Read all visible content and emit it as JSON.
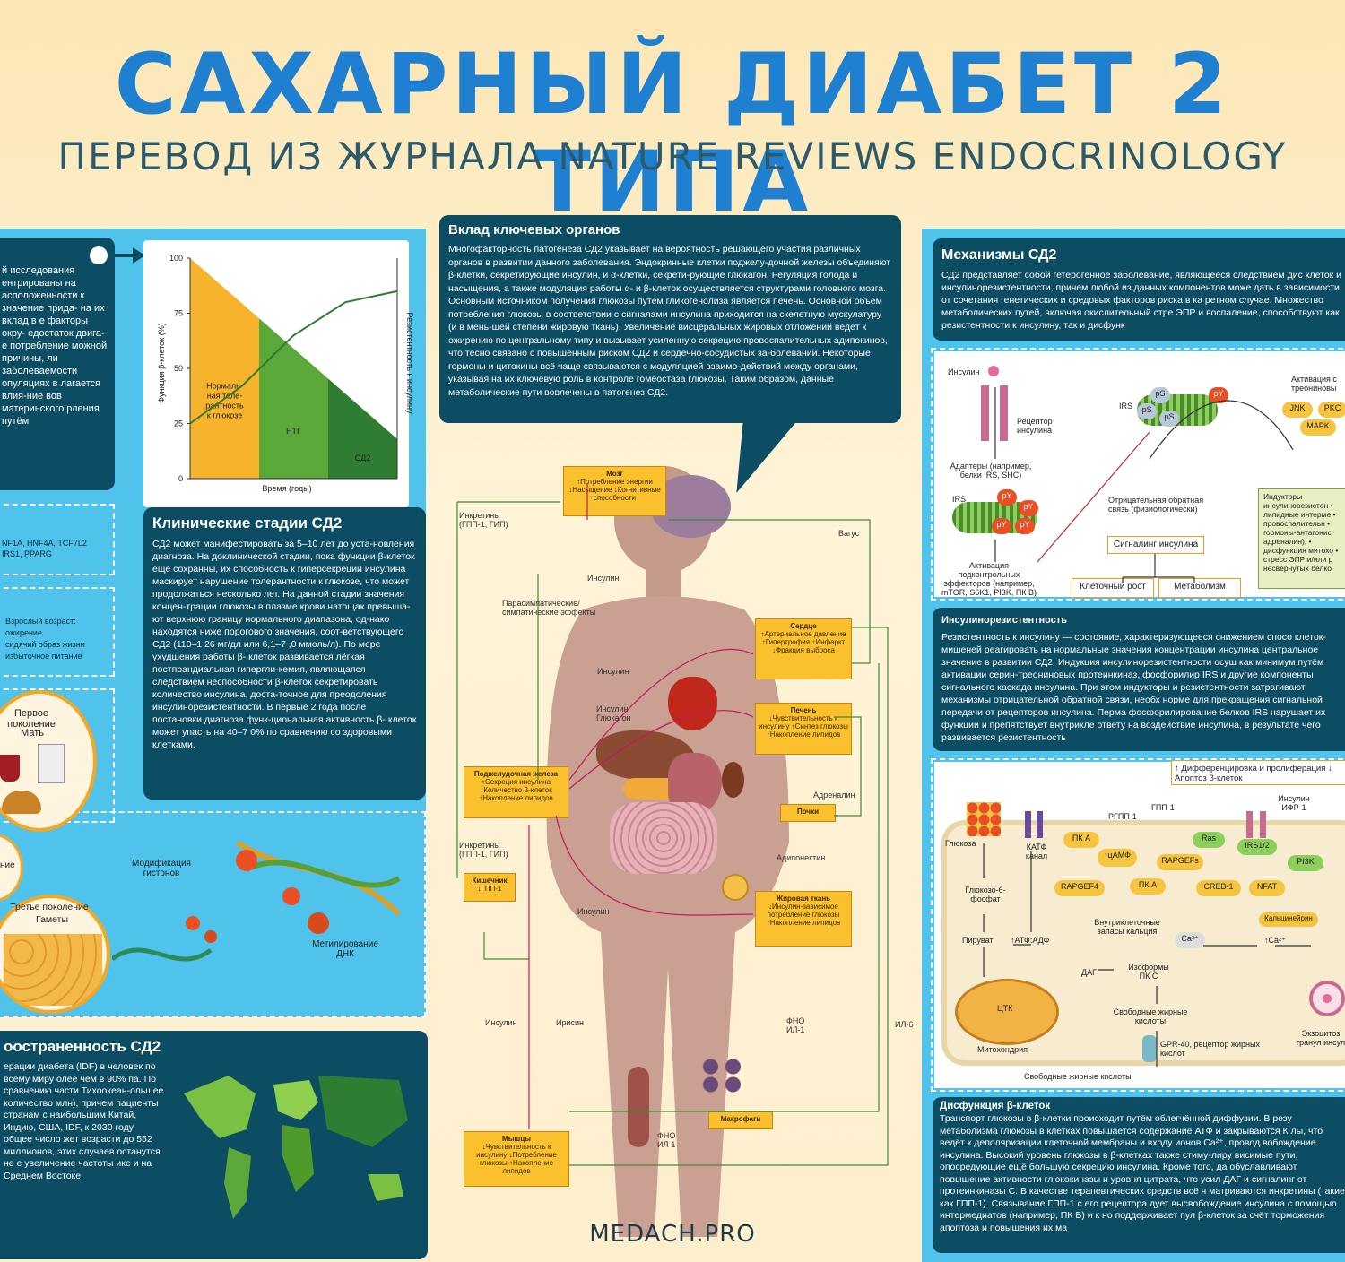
{
  "header": {
    "title": "САХАРНЫЙ ДИАБЕТ 2 ТИПА",
    "subtitle": "ПЕРЕВОД ИЗ ЖУРНАЛА NATURE REVIEWS ENDOCRINOLOGY"
  },
  "left_intro": {
    "text": "й исследования ентрированы на асположенности к значение прида- на их вклад в е факторы окру- едостаток двига- е потребление можной причины, ли заболеваемости опуляциях в лагается влия-ние вов материнского рления путём"
  },
  "genes": {
    "text": "NF1A, HNF4A, TCF7L2 IRS1, PPARG"
  },
  "risk": {
    "heading": "Взрослый возраст:",
    "items": [
      "ожирение",
      "сидячий образ жизни",
      "избыточное питание"
    ]
  },
  "generations": {
    "first": "Первое поколение",
    "mother": "Мать",
    "second": "ние",
    "third": "Третье поколение",
    "gametes": "Гаметы",
    "histone": "Модификация гистонов",
    "methylation": "Метилирование ДНК"
  },
  "chart_data": {
    "type": "area",
    "title": "",
    "xlabel": "Время (годы)",
    "ylabel": "Функция β-клеток (%)",
    "y2label": "Резистентность к инсулину",
    "ylim": [
      0,
      100
    ],
    "yticks": [
      0,
      25,
      50,
      75,
      100
    ],
    "stages": [
      {
        "name": "Нормаль-ная толе-рантность к глюкозе",
        "color": "#f7b32b"
      },
      {
        "name": "НТГ",
        "color": "#5aa83a"
      },
      {
        "name": "СД2",
        "color": "#2e7d32"
      }
    ],
    "series": [
      {
        "name": "Функция β-клеток",
        "x": [
          0,
          1
        ],
        "values": [
          100,
          18
        ]
      },
      {
        "name": "Резистентность к инсулину",
        "x": [
          0,
          0.25,
          0.5,
          0.75,
          1
        ],
        "values": [
          25,
          42,
          65,
          80,
          85
        ]
      }
    ]
  },
  "clinical": {
    "title": "Клинические стадии СД2",
    "text": "СД2 может манифестировать за 5–10 лет до уста-новления диагноза. На доклинической стадии, пока функции β-клеток еще сохранны, их способность к гиперсекреции инсулина маскирует нарушение толерантности к глюкозе, что может продолжаться несколько лет. На данной стадии значения концен-трации глюкозы в плазме крови натощак превыша-ют верхнюю границу нормального диапазона, од-нако находятся ниже порогового значения, соот-ветствующего СД2 (110–1 26 мг/дл или 6,1–7 ,0 ммоль/л). По мере ухудшения работы β- клеток развивается лёгкая постпрандиальная гипергли-кемия, являющаяся следствием неспособности β-клеток секретировать количество инсулина, доста-точное для преодоления инсулинорезистентности. В первые 2 года после постановки диагноза функ-циональная активность β- клеток может упасть на 40–7 0% по сравнению со здоровыми клетками."
  },
  "prevalence": {
    "title": "оостраненность СД2",
    "text": "ерации диабета (IDF) в человек по всему миру олее чем в 90% па. По сравнению части Тихоокеан-ольшее количество млн), причем пациенты странам с наибольшим Китай, Индию, США, IDF, к 2030 году общее число жет возрасти до 552 миллионов, этих случаев останутся не е увеличение частоты ике и на Среднем Востоке."
  },
  "organs": {
    "title": "Вклад ключевых органов",
    "text": "Многофакторность патогенеза СД2 указывает на вероятность решающего участия различных органов в развитии данного заболевания. Эндокринные клетки поджелу-дочной железы объединяют β-клетки, секретирующие инсулин, и α-клетки, секрети-рующие глюкагон. Регуляция голода и насыщения, а также модуляция работы α- и β-клеток осуществляется структурами головного мозга. Основным источником получения глюкозы путём гликогенолиза является печень. Основной объём потребления глюкозы в соответствии с сигналами инсулина приходится на скелетную мускулатуру (и в мень-шей степени жировую ткань). Увеличение висцеральных жировых отложений ведёт к ожирению по центральному типу и вызывает усиленную секрецию провоспалительных адипокинов, что тесно связано с повышенным риском СД2 и сердечно-сосудистых за-болеваний. Некоторые гормоны и цитокины всё чаще связываются с модуляцией взаимо-действий между органами, указывая на их ключевую роль в контроле гомеостаза глюкозы. Таким образом, данные метаболические пути вовлечены в патогенез СД2."
  },
  "body": {
    "brain": {
      "title": "Мозг",
      "text": "↑Потребление энергии ↓Насыщение ↓Когнитивные способности"
    },
    "heart": {
      "title": "Сердце",
      "text": "↑Артериальное давление ↑Гипертрофия ↑Инфаркт ↓Фракция выброса"
    },
    "liver": {
      "title": "Печень",
      "text": "↓Чувствительность к инсулину ↑Синтез глюкозы ↑Накопление липидов"
    },
    "pancreas": {
      "title": "Поджелудочная железа",
      "text": "↑Секреция инсулина ↓Количество β-клеток ↑Накопление липидов"
    },
    "kidney": {
      "title": "Почки",
      "text": ""
    },
    "gut": {
      "title": "Кишечник",
      "text": "↓ГПП-1"
    },
    "fat": {
      "title": "Жировая ткань",
      "text": "↓Инсулин-зависимое потребление глюкозы ↑Накопление липидов"
    },
    "muscle": {
      "title": "Мышцы",
      "text": "↓Чувствительность к инсулину ↓Потребление глюкозы ↑Накопление липидов"
    },
    "macro": {
      "title": "Макрофаги",
      "text": ""
    },
    "labels": {
      "incretins1": "Инкретины (ГПП-1, ГИП)",
      "insulin_brain": "Инсулин",
      "vagus": "Вагус",
      "parasymp": "Парасимпатические/ симпатические эффекты",
      "insulin_heart": "Инсулин",
      "insulin_liver": "Инсулин Глюкагон",
      "adrenalin": "Адреналин",
      "incretins2": "Инкретины (ГПП-1, ГИП)",
      "adiponectin": "Адипонектин",
      "insulin_fat": "Инсулин",
      "insulin_muscle": "Инсулин",
      "irisin": "Ирисин",
      "tnf_il1a": "ФНО ИЛ-1",
      "il6": "ИЛ-6",
      "tnf_il1b": "ФНО ИЛ-1"
    }
  },
  "watermark": "MEDACH.PRO",
  "mechanisms": {
    "title": "Механизмы СД2",
    "text": "СД2 представляет собой гетерогенное заболевание, являющееся следствием дис клеток и инсулинорезистентности, причем любой из данных компонентов може дать в зависимости от сочетания генетических и средовых факторов риска в ка ретном случае. Множество метаболических путей, включая окислительный стре ЭПР и воспаление, способствуют как резистентности к инсулину, так и дисфунк"
  },
  "signaling": {
    "insulin": "Инсулин",
    "receptor": "Рецептор инсулина",
    "adapters": "Адаптеры (например, белки IRS, SHC)",
    "irs1": "IRS",
    "irs2": "IRS",
    "activation": "Активация подконтрольных эффекторов (например, mTOR, S6K1, PI3K, ПК B)",
    "neg_feedback": "Отрицательная обратная связь (физиологически)",
    "signal": "Сигналинг инсулина",
    "growth": "Клеточный рост",
    "metabolism": "Метаболизм",
    "kin_act": "Активация с треониновы",
    "jnk": "JNK",
    "pkc": "PKC",
    "mapk": "MAPK",
    "ps": "pS",
    "py": "pY",
    "inducers": "Индукторы инсулинорезистен • липидные интерме • провоспалительн • гормоны-антагонис адреналин), • дисфункция митохо • стресс ЭПР и/или р несвёрнутых белко"
  },
  "ir": {
    "title": "Инсулинорезистентность",
    "text": "Резистентность к инсулину — состояние, характеризующееся снижением спосо клеток-мишеней реагировать на нормальные значения концентрации инсулина центральное значение в развитии СД2. Индукция инсулинорезистентности осуш как минимум путём активации серин-треониновых протеинкиназ, фосфорилир IRS и другие компоненты сигнального каскада инсулина. При этом индукторы и резистентности затрагивают механизмы отрицательной обратной связи, необх норме для прекращения сигнальной передачи от рецепторов инсулина. Перма фосфорилирование белков IRS нарушает их функции и препятствует внутрикле ответу на воздействие инсулина, в результате чего развивается резистентность"
  },
  "beta": {
    "diff": "↑ Дифференцировка и пролиферация ↓ Апоптоз β-клеток",
    "glucose": "Глюкоза",
    "k_atp": "КАТФ канал",
    "g6p": "Глюкозо-6-фосфат",
    "pyruvate": "Пируват",
    "atp": "↑АТФ:АДФ",
    "tca": "ЦТК",
    "mito": "Митохондрия",
    "rgpp": "РГПП-1",
    "gpp": "ГПП-1",
    "pka1": "ПК A",
    "camp": "↑цАМФ",
    "rapgefs": "RAPGEFs",
    "rapgef4": "RAPGEF4",
    "pka2": "ПК A",
    "creb": "CREB-1",
    "nfat": "NFAT",
    "ras": "Ras",
    "irs12": "IRS1/2",
    "pi3k": "PI3K",
    "igf": "Инсулин ИФР-1",
    "calc_store": "Внутриклеточные запасы кальция",
    "ca": "Ca²⁺",
    "ca_up": "↑Ca²⁺",
    "calcineurin": "Кальцинейрин",
    "dag": "ДАГ",
    "pkc_iso": "Изоформы ПК C",
    "ffa_in": "Свободные жирные кислоты",
    "gpr40": "GPR-40, рецептор жирных кислот",
    "ffa_out": "Свободные жирные кислоты",
    "exo": "Экзоцитоз гранул инсул"
  },
  "dysfunction": {
    "title": "Дисфункция β-клеток",
    "text": "Транспорт глюкозы в β-клетки происходит путём облегчённой диффузии. В резу метаболизма глюкозы в клетках повышается содержание АТФ и закрываются К лы, что ведёт к деполяризации клеточной мембраны и входу ионов Ca²⁺, провод вобождение инсулина. Высокий уровень глюкозы в β-клетках также стиму-лиру висимые пути, опосредующие ещё большую секрецию инсулина. Кроме того, да обуславливают повышение активности глюкокиназы и уровня цитрата, что усил ДАГ и сигналинг от протеинкиназы С. В качестве терапевтических средств всё ч матриваются инкретины (такие как ГПП-1). Связывание ГПП-1 с его рецептора дует высвобождение инсулина с помощью интермедиатов (например, ПК В) и к но поддерживает пул β-клеток за счёт торможения апоптоза и повышения их ма"
  }
}
